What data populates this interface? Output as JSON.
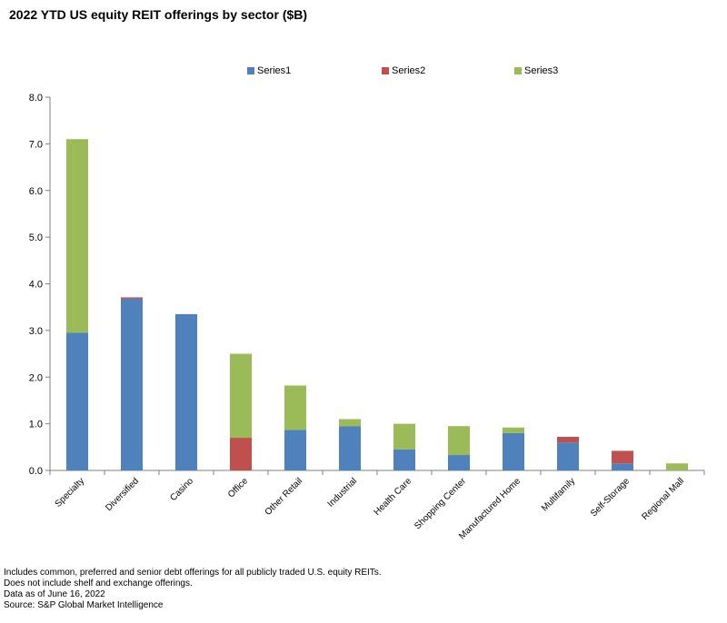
{
  "title": "2022 YTD US equity REIT offerings by sector ($B)",
  "chart_data": {
    "type": "bar",
    "stacked": true,
    "categories": [
      "Specialty",
      "Diversified",
      "Casino",
      "Office",
      "Other Retail",
      "Industrial",
      "Health Care",
      "Shopping Center",
      "Manufactured Home",
      "Multifamily",
      "Self-Storage",
      "Regional Mall"
    ],
    "series": [
      {
        "name": "Series1",
        "color": "#4F81BD",
        "values": [
          2.95,
          3.68,
          3.35,
          0.0,
          0.87,
          0.95,
          0.45,
          0.33,
          0.8,
          0.6,
          0.15,
          0.0
        ]
      },
      {
        "name": "Series2",
        "color": "#C0504D",
        "values": [
          0.0,
          0.03,
          0.0,
          0.7,
          0.0,
          0.0,
          0.0,
          0.0,
          0.0,
          0.12,
          0.27,
          0.0
        ]
      },
      {
        "name": "Series3",
        "color": "#9BBB59",
        "values": [
          4.15,
          0.0,
          0.0,
          1.8,
          0.95,
          0.15,
          0.55,
          0.62,
          0.12,
          0.0,
          0.0,
          0.15
        ]
      }
    ],
    "ylim": [
      0,
      8
    ],
    "yticks": [
      "0.0",
      "1.0",
      "2.0",
      "3.0",
      "4.0",
      "5.0",
      "6.0",
      "7.0",
      "8.0"
    ],
    "xlabel": "",
    "ylabel": "",
    "legend_position": "top"
  },
  "notes": [
    "Includes common, preferred and senior debt offerings for all publicly traded U.S. equity REITs.",
    "Does not include shelf and exchange offerings.",
    "Data as of June 16, 2022",
    "Source: S&P Global Market Intelligence"
  ]
}
